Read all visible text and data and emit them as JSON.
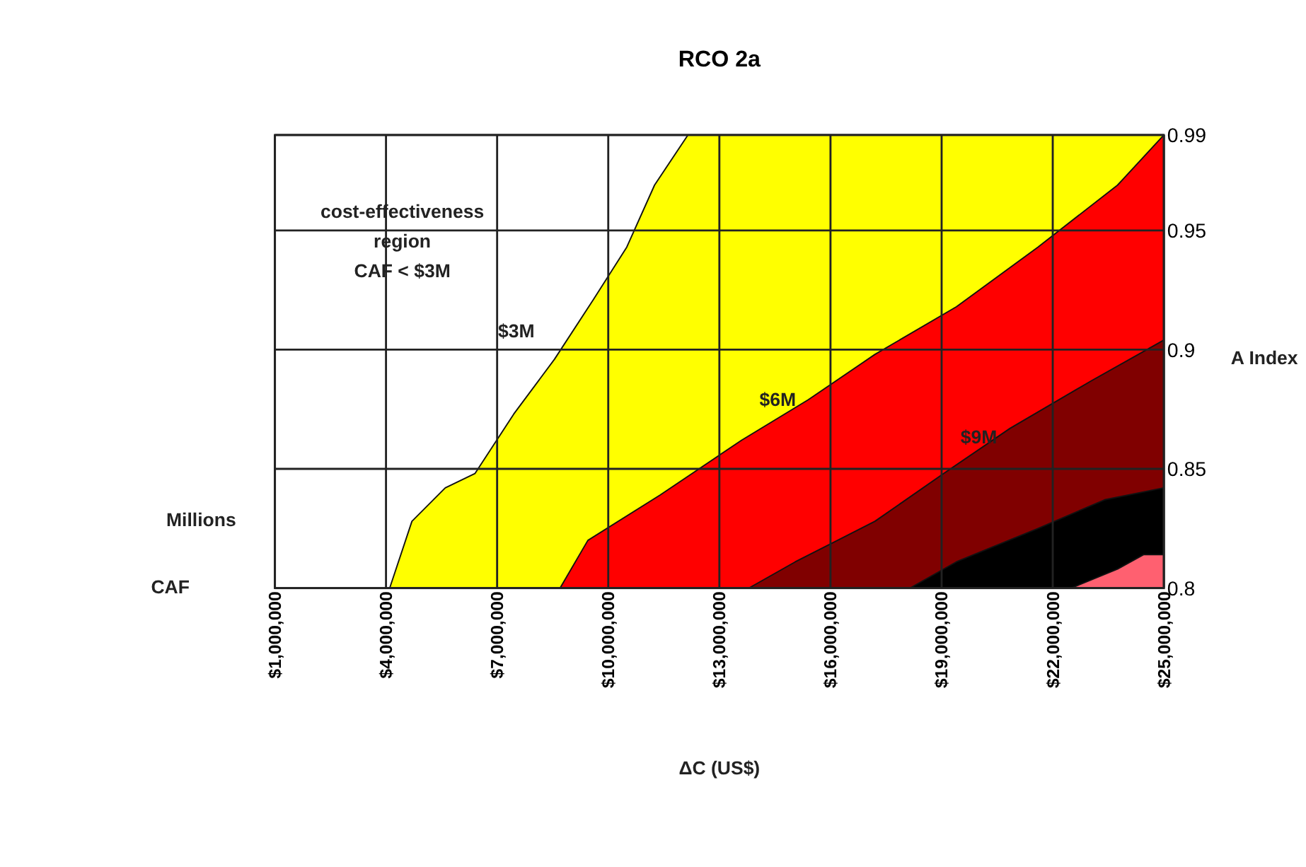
{
  "chart_data": {
    "type": "area",
    "title": "RCO 2a",
    "xlabel": "ΔC (US$)",
    "ylabel": "A Index",
    "xlim": [
      1000000,
      25000000
    ],
    "xticks": [
      {
        "value": 1000000,
        "label": "$1,000,000"
      },
      {
        "value": 4000000,
        "label": "$4,000,000"
      },
      {
        "value": 7000000,
        "label": "$7,000,000"
      },
      {
        "value": 10000000,
        "label": "$10,000,000"
      },
      {
        "value": 13000000,
        "label": "$13,000,000"
      },
      {
        "value": 16000000,
        "label": "$16,000,000"
      },
      {
        "value": 19000000,
        "label": "$19,000,000"
      },
      {
        "value": 22000000,
        "label": "$22,000,000"
      },
      {
        "value": 25000000,
        "label": "$25,000,000"
      }
    ],
    "ylim": [
      0.8,
      0.99
    ],
    "yticks": [
      0.8,
      0.85,
      0.9,
      0.95,
      0.99
    ],
    "grid": true,
    "series": [
      {
        "color": "#ffff00",
        "x": [
          4100000,
          4700000,
          5600000,
          6400000,
          7450000,
          8550000,
          9600000,
          10500000,
          11250000,
          12150000,
          25000000
        ],
        "values": [
          0.8,
          0.828,
          0.842,
          0.848,
          0.873,
          0.896,
          0.921,
          0.943,
          0.969,
          0.99,
          0.99
        ]
      },
      {
        "color": "#ff0000",
        "x": [
          8700000,
          9450000,
          11400000,
          13600000,
          15400000,
          17200000,
          19400000,
          21600000,
          23750000,
          25000000
        ],
        "values": [
          0.8,
          0.82,
          0.839,
          0.862,
          0.879,
          0.898,
          0.918,
          0.943,
          0.969,
          0.99
        ]
      },
      {
        "color": "#800000",
        "x": [
          13800000,
          15050000,
          17200000,
          19050000,
          20850000,
          23050000,
          25000000
        ],
        "values": [
          0.8,
          0.811,
          0.828,
          0.848,
          0.867,
          0.887,
          0.904
        ]
      },
      {
        "color": "#000000",
        "x": [
          18150000,
          19400000,
          21600000,
          23400000,
          25000000
        ],
        "values": [
          0.8,
          0.811,
          0.825,
          0.837,
          0.842
        ]
      },
      {
        "color": "#ff6070",
        "x": [
          22500000,
          23750000,
          24450000,
          25000000
        ],
        "values": [
          0.8,
          0.808,
          0.814,
          0.814
        ]
      }
    ],
    "annotations": [
      "cost-effectiveness\nregion\nCAF < $3M",
      "Millions",
      "CAF",
      "$3M",
      "$6M",
      "$9M"
    ]
  }
}
